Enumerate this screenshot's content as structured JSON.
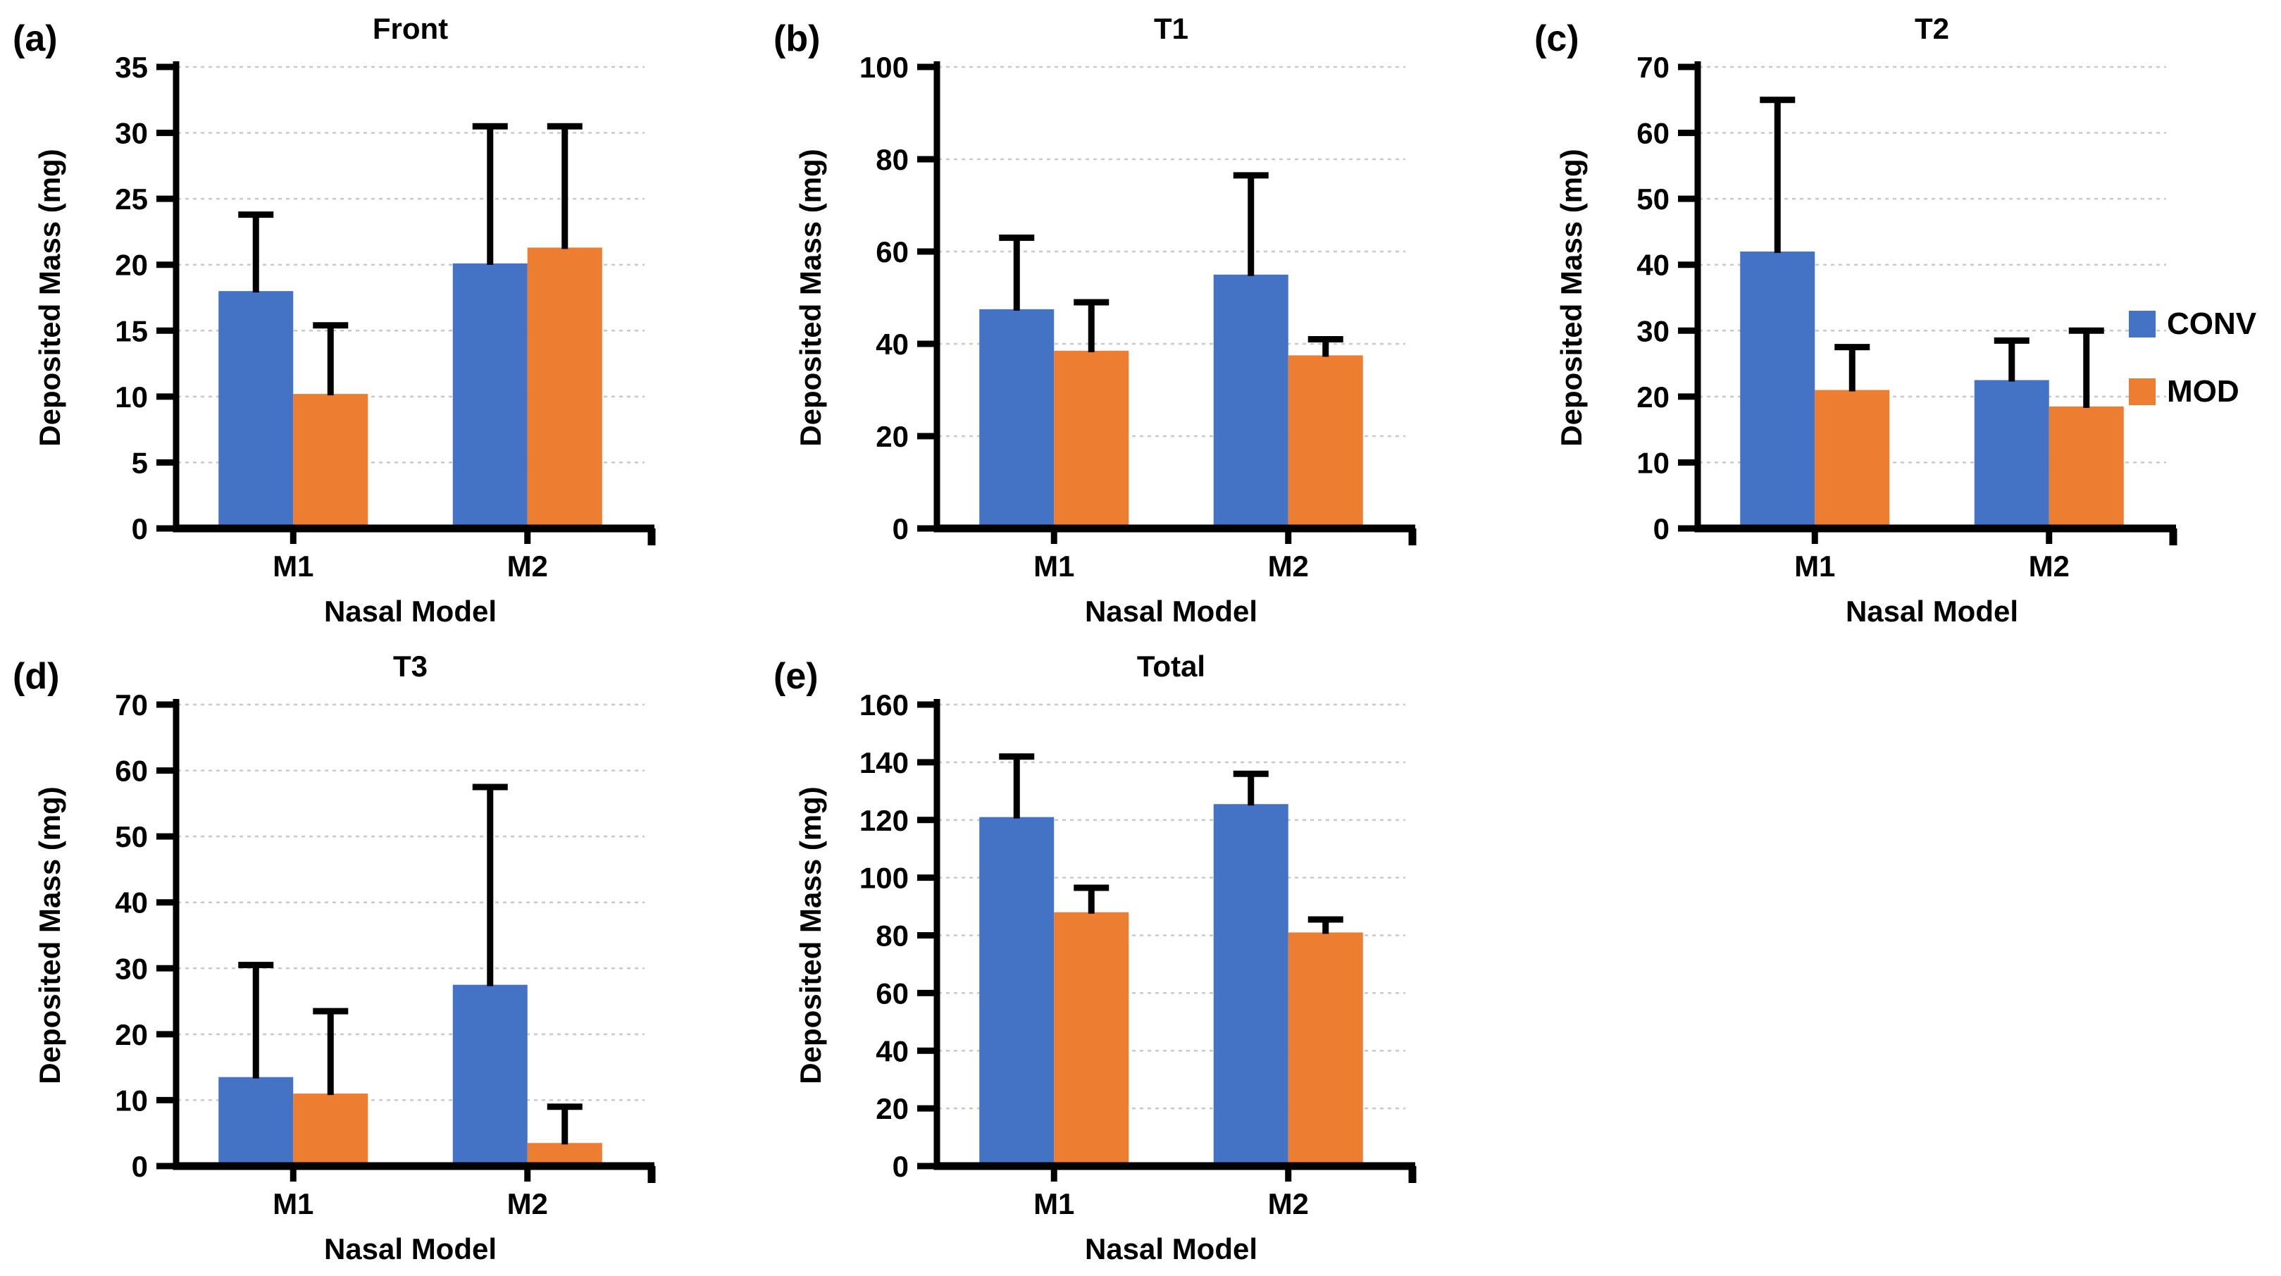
{
  "figure": {
    "background": "#ffffff",
    "ink_color": "#000000",
    "gridline_color": "#c9c9c9"
  },
  "legend": {
    "position": "right-middle",
    "items": [
      {
        "label": "CONV",
        "color": "#4472C4",
        "swatch": "square"
      },
      {
        "label": "MOD",
        "color": "#ED7D31",
        "swatch": "square"
      }
    ]
  },
  "chart_data": [
    {
      "panel_label": "(a)",
      "type": "bar",
      "title": "Front",
      "xlabel": "Nasal Model",
      "ylabel": "Deposited Mass (mg)",
      "ylim": [
        0,
        35
      ],
      "ytick_step": 5,
      "grid": "horizontal-dashed",
      "error_bars": "upper",
      "legend_position": "none",
      "categories": [
        "M1",
        "M2"
      ],
      "series": [
        {
          "name": "CONV",
          "color": "#4472C4",
          "values": [
            18.0,
            20.1
          ],
          "errors_plus": [
            5.8,
            10.4
          ]
        },
        {
          "name": "MOD",
          "color": "#ED7D31",
          "values": [
            10.2,
            21.3
          ],
          "errors_plus": [
            5.2,
            9.2
          ]
        }
      ]
    },
    {
      "panel_label": "(b)",
      "type": "bar",
      "title": "T1",
      "xlabel": "Nasal Model",
      "ylabel": "Deposited Mass (mg)",
      "ylim": [
        0,
        100
      ],
      "ytick_step": 20,
      "grid": "horizontal-dashed",
      "error_bars": "upper",
      "legend_position": "none",
      "categories": [
        "M1",
        "M2"
      ],
      "series": [
        {
          "name": "CONV",
          "color": "#4472C4",
          "values": [
            47.5,
            55.0
          ],
          "errors_plus": [
            15.5,
            21.5
          ]
        },
        {
          "name": "MOD",
          "color": "#ED7D31",
          "values": [
            38.5,
            37.5
          ],
          "errors_plus": [
            10.5,
            3.5
          ]
        }
      ]
    },
    {
      "panel_label": "(c)",
      "type": "bar",
      "title": "T2",
      "xlabel": "Nasal Model",
      "ylabel": "Deposited Mass (mg)",
      "ylim": [
        0,
        70
      ],
      "ytick_step": 10,
      "grid": "horizontal-dashed",
      "error_bars": "upper",
      "legend_position": "right",
      "categories": [
        "M1",
        "M2"
      ],
      "series": [
        {
          "name": "CONV",
          "color": "#4472C4",
          "values": [
            42.0,
            22.5
          ],
          "errors_plus": [
            23.0,
            6.0
          ]
        },
        {
          "name": "MOD",
          "color": "#ED7D31",
          "values": [
            21.0,
            18.5
          ],
          "errors_plus": [
            6.5,
            11.5
          ]
        }
      ]
    },
    {
      "panel_label": "(d)",
      "type": "bar",
      "title": "T3",
      "xlabel": "Nasal Model",
      "ylabel": "Deposited Mass (mg)",
      "ylim": [
        0,
        70
      ],
      "ytick_step": 10,
      "grid": "horizontal-dashed",
      "error_bars": "upper",
      "legend_position": "none",
      "categories": [
        "M1",
        "M2"
      ],
      "series": [
        {
          "name": "CONV",
          "color": "#4472C4",
          "values": [
            13.5,
            27.5
          ],
          "errors_plus": [
            17.0,
            30.0
          ]
        },
        {
          "name": "MOD",
          "color": "#ED7D31",
          "values": [
            11.0,
            3.5
          ],
          "errors_plus": [
            12.5,
            5.5
          ]
        }
      ]
    },
    {
      "panel_label": "(e)",
      "type": "bar",
      "title": "Total",
      "xlabel": "Nasal Model",
      "ylabel": "Deposited Mass (mg)",
      "ylim": [
        0,
        160
      ],
      "ytick_step": 20,
      "grid": "horizontal-dashed",
      "error_bars": "upper",
      "legend_position": "none",
      "categories": [
        "M1",
        "M2"
      ],
      "series": [
        {
          "name": "CONV",
          "color": "#4472C4",
          "values": [
            121.0,
            125.5
          ],
          "errors_plus": [
            21.0,
            10.5
          ]
        },
        {
          "name": "MOD",
          "color": "#ED7D31",
          "values": [
            88.0,
            81.0
          ],
          "errors_plus": [
            8.5,
            4.5
          ]
        }
      ]
    }
  ]
}
